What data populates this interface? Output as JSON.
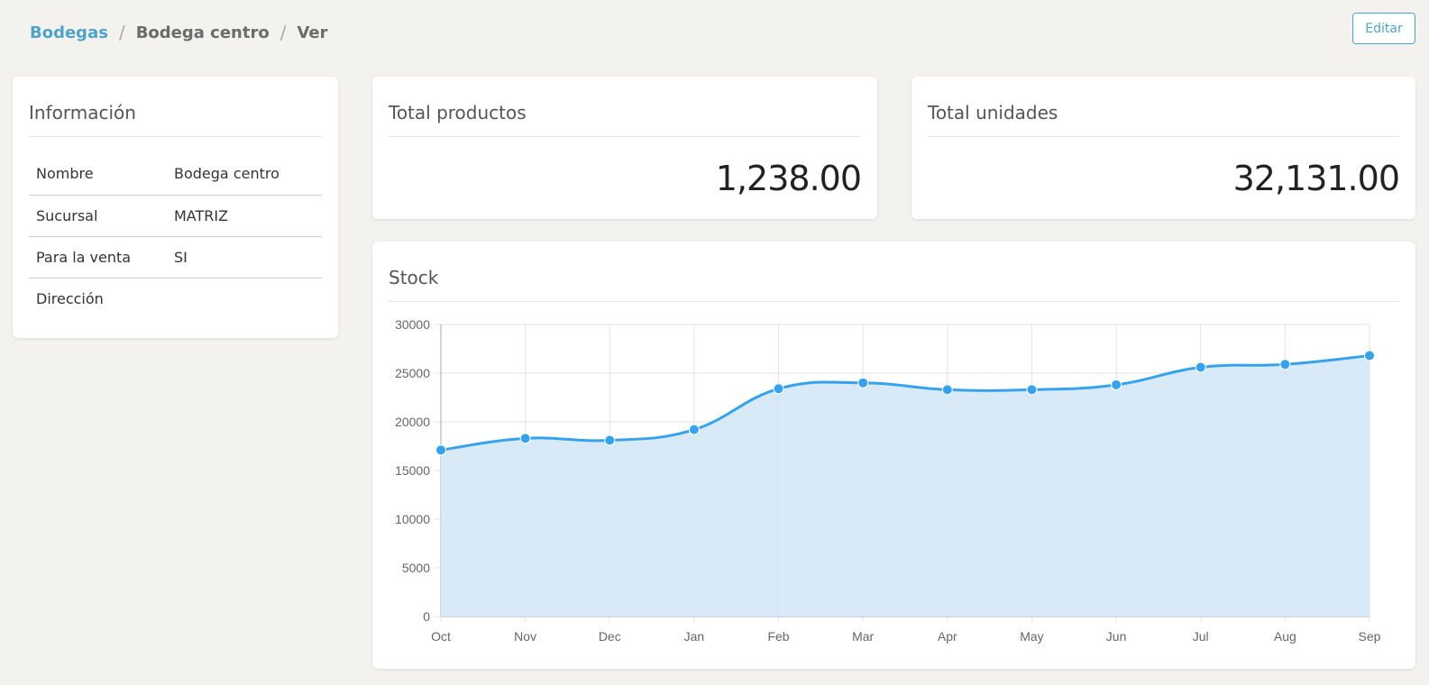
{
  "breadcrumb": {
    "root": "Bodegas",
    "current_warehouse": "Bodega centro",
    "action": "Ver",
    "separator": "/"
  },
  "header": {
    "edit_label": "Editar"
  },
  "info": {
    "title": "Información",
    "rows": [
      {
        "key": "Nombre",
        "value": "Bodega centro"
      },
      {
        "key": "Sucursal",
        "value": "MATRIZ"
      },
      {
        "key": "Para la venta",
        "value": "SI"
      },
      {
        "key": "Dirección",
        "value": ""
      }
    ]
  },
  "stats": {
    "products": {
      "title": "Total productos",
      "value": "1,238.00"
    },
    "units": {
      "title": "Total unidades",
      "value": "32,131.00"
    }
  },
  "stock": {
    "title": "Stock"
  },
  "colors": {
    "accent": "#4fa3c7",
    "line": "#36a2eb",
    "fill": "#d4e8f7"
  },
  "chart_data": {
    "type": "area",
    "title": "Stock",
    "categories": [
      "Oct",
      "Nov",
      "Dec",
      "Jan",
      "Feb",
      "Mar",
      "Apr",
      "May",
      "Jun",
      "Jul",
      "Aug",
      "Sep"
    ],
    "series": [
      {
        "values": [
          17100,
          18300,
          18100,
          19200,
          23400,
          24000,
          23300,
          23300,
          23800,
          25600,
          25900,
          26800
        ]
      }
    ],
    "yticks": [
      0,
      5000,
      10000,
      15000,
      20000,
      25000,
      30000
    ],
    "ylim": [
      0,
      30000
    ],
    "grid": true,
    "legend": "none"
  }
}
